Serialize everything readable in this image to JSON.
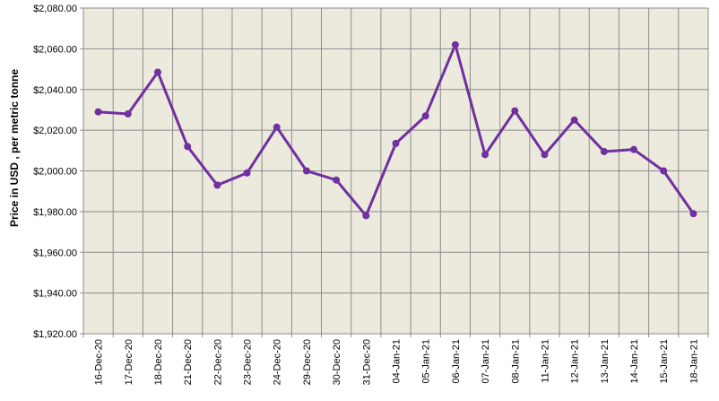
{
  "chart_data": {
    "type": "line",
    "title": "",
    "xlabel": "",
    "ylabel": "Price in USD , per metric tonne",
    "categories": [
      "16-Dec-20",
      "17-Dec-20",
      "18-Dec-20",
      "21-Dec-20",
      "22-Dec-20",
      "23-Dec-20",
      "24-Dec-20",
      "29-Dec-20",
      "30-Dec-20",
      "31-Dec-20",
      "04-Jan-21",
      "05-Jan-21",
      "06-Jan-21",
      "07-Jan-21",
      "08-Jan-21",
      "11-Jan-21",
      "12-Jan-21",
      "13-Jan-21",
      "14-Jan-21",
      "15-Jan-21",
      "18-Jan-21"
    ],
    "series": [
      {
        "values": [
          2029,
          2028,
          2048.5,
          2012,
          1993,
          1999,
          2021.5,
          2000,
          1995.5,
          1978,
          2013.5,
          2027,
          2062,
          2008,
          2029.5,
          2008,
          2025,
          2009.5,
          2010.5,
          2000,
          1979
        ]
      }
    ],
    "ylim": [
      1920,
      2080
    ],
    "y_ticks": [
      "$2,080.00",
      "$2,060.00",
      "$2,040.00",
      "$2,020.00",
      "$2,000.00",
      "$1,980.00",
      "$1,960.00",
      "$1,940.00",
      "$1,920.00"
    ],
    "y_tick_values": [
      2080,
      2060,
      2040,
      2020,
      2000,
      1980,
      1960,
      1940,
      1920
    ],
    "grid": true,
    "legend": "none",
    "colors": {
      "plot_background": "#ece9dd",
      "grid": "#8c8c8c",
      "line": "#7030a0"
    }
  }
}
